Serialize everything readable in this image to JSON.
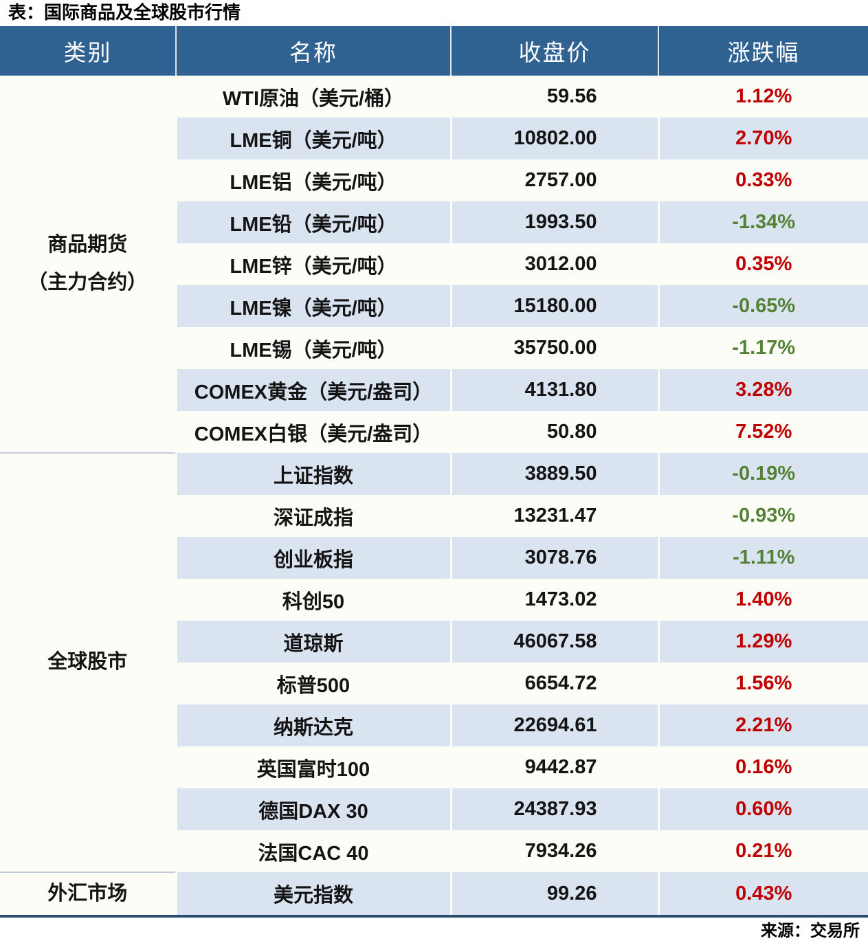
{
  "title": "表：国际商品及全球股市行情",
  "source": "来源：交易所",
  "header": {
    "category": "类别",
    "name": "名称",
    "close": "收盘价",
    "change": "涨跌幅"
  },
  "colors": {
    "up": "#c00000",
    "down": "#538135",
    "header_bg": "#2f6191",
    "row_alt_bg": "#dae4f0",
    "row_bg": "#fdfdf7",
    "bottom_border": "#2b4d72"
  },
  "groups": [
    {
      "category_lines": [
        "商品期货",
        "（主力合约）"
      ],
      "rows": [
        {
          "name": "WTI原油（美元/桶）",
          "close": "59.56",
          "change": "1.12%"
        },
        {
          "name": "LME铜（美元/吨）",
          "close": "10802.00",
          "change": "2.70%"
        },
        {
          "name": "LME铝（美元/吨）",
          "close": "2757.00",
          "change": "0.33%"
        },
        {
          "name": "LME铅（美元/吨）",
          "close": "1993.50",
          "change": "-1.34%"
        },
        {
          "name": "LME锌（美元/吨）",
          "close": "3012.00",
          "change": "0.35%"
        },
        {
          "name": "LME镍（美元/吨）",
          "close": "15180.00",
          "change": "-0.65%"
        },
        {
          "name": "LME锡（美元/吨）",
          "close": "35750.00",
          "change": "-1.17%"
        },
        {
          "name": "COMEX黄金（美元/盎司）",
          "close": "4131.80",
          "change": "3.28%"
        },
        {
          "name": "COMEX白银（美元/盎司）",
          "close": "50.80",
          "change": "7.52%"
        }
      ]
    },
    {
      "category_lines": [
        "全球股市"
      ],
      "rows": [
        {
          "name": "上证指数",
          "close": "3889.50",
          "change": "-0.19%"
        },
        {
          "name": "深证成指",
          "close": "13231.47",
          "change": "-0.93%"
        },
        {
          "name": "创业板指",
          "close": "3078.76",
          "change": "-1.11%"
        },
        {
          "name": "科创50",
          "close": "1473.02",
          "change": "1.40%"
        },
        {
          "name": "道琼斯",
          "close": "46067.58",
          "change": "1.29%"
        },
        {
          "name": "标普500",
          "close": "6654.72",
          "change": "1.56%"
        },
        {
          "name": "纳斯达克",
          "close": "22694.61",
          "change": "2.21%"
        },
        {
          "name": "英国富时100",
          "close": "9442.87",
          "change": "0.16%"
        },
        {
          "name": "德国DAX 30",
          "close": "24387.93",
          "change": "0.60%"
        },
        {
          "name": "法国CAC 40",
          "close": "7934.26",
          "change": "0.21%"
        }
      ]
    },
    {
      "category_lines": [
        "外汇市场"
      ],
      "rows": [
        {
          "name": "美元指数",
          "close": "99.26",
          "change": "0.43%"
        }
      ]
    }
  ]
}
